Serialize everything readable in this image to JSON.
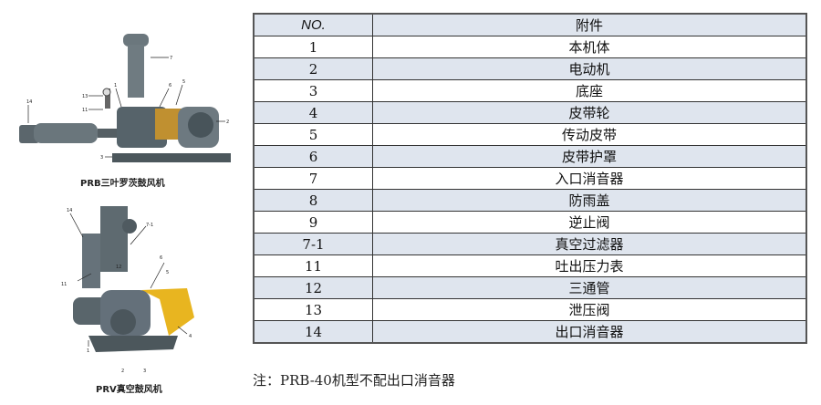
{
  "figures": [
    {
      "caption": "PRB三叶罗茨鼓风机",
      "callouts": [
        "14",
        "13",
        "11",
        "1",
        "6",
        "5",
        "7",
        "2",
        "3"
      ]
    },
    {
      "caption": "PRV真空鼓风机",
      "callouts": [
        "14",
        "7-1",
        "12",
        "11",
        "6",
        "5",
        "4",
        "1",
        "2",
        "3"
      ]
    }
  ],
  "table": {
    "header": {
      "no": "NO.",
      "part": "附件"
    },
    "rows": [
      {
        "no": "1",
        "part": "本机体"
      },
      {
        "no": "2",
        "part": "电动机"
      },
      {
        "no": "3",
        "part": "底座"
      },
      {
        "no": "4",
        "part": "皮带轮"
      },
      {
        "no": "5",
        "part": "传动皮带"
      },
      {
        "no": "6",
        "part": "皮带护罩"
      },
      {
        "no": "7",
        "part": "入口消音器"
      },
      {
        "no": "8",
        "part": "防雨盖"
      },
      {
        "no": "9",
        "part": "逆止阀"
      },
      {
        "no": "7-1",
        "part": "真空过滤器"
      },
      {
        "no": "11",
        "part": "吐出压力表"
      },
      {
        "no": "12",
        "part": "三通管"
      },
      {
        "no": "13",
        "part": "泄压阀"
      },
      {
        "no": "14",
        "part": "出口消音器"
      }
    ]
  },
  "note": "注：PRB-40机型不配出口消音器",
  "colors": {
    "row_shade": "#dfe5ee",
    "machine_gray": "#5d6a70",
    "guard_yellow": "#e8b520"
  }
}
